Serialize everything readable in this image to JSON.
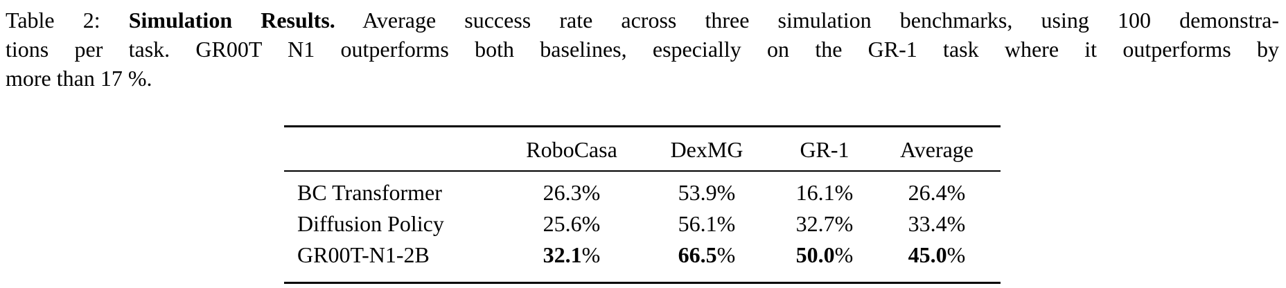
{
  "caption": {
    "line1_prefix": "Table 2: ",
    "line1_bold": "Simulation Results.",
    "line1_rest": " Average success rate across three simulation benchmarks, using 100 demonstra-",
    "line2": "tions per task. GR00T N1 outperforms both baselines, especially on the GR-1 task where it outperforms by",
    "line3": "more than 17 %."
  },
  "table": {
    "columns": [
      "",
      "RoboCasa",
      "DexMG",
      "GR-1",
      "Average"
    ],
    "percent_sign": "%",
    "rows": [
      {
        "label": "BC Transformer",
        "bold": false,
        "values": [
          "26.3",
          "53.9",
          "16.1",
          "26.4"
        ]
      },
      {
        "label": "Diffusion Policy",
        "bold": false,
        "values": [
          "25.6",
          "56.1",
          "32.7",
          "33.4"
        ]
      },
      {
        "label": "GR00T-N1-2B",
        "bold": true,
        "values": [
          "32.1",
          "66.5",
          "50.0",
          "45.0"
        ]
      }
    ]
  },
  "colors": {
    "text": "#000000",
    "background": "#ffffff",
    "rule": "#000000"
  }
}
